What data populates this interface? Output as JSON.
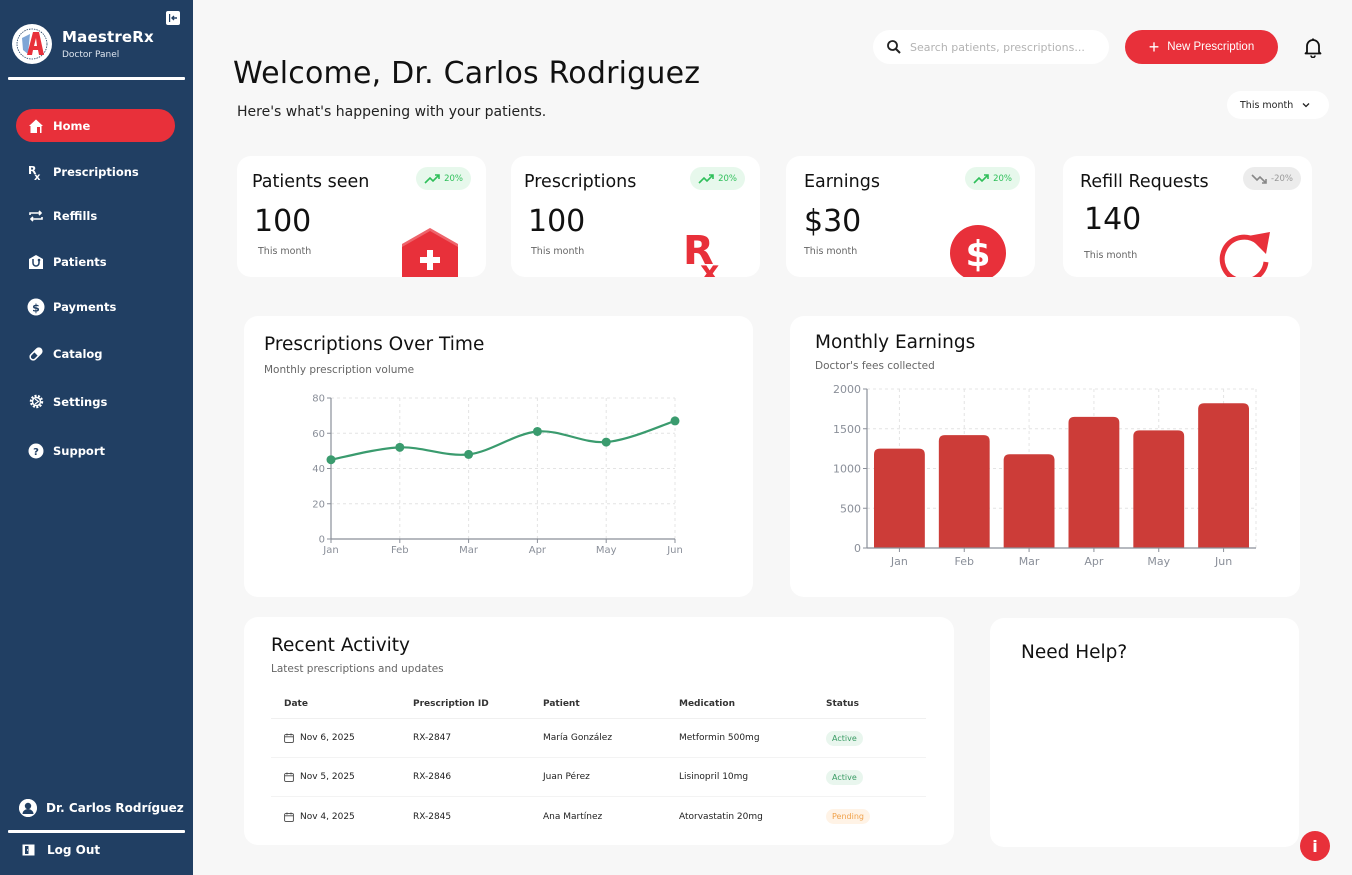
{
  "sidebar": {
    "brand_name": "MaestreRx",
    "brand_sub": "Doctor Panel",
    "items": [
      {
        "label": "Home",
        "icon": "home-icon",
        "active": true
      },
      {
        "label": "Prescriptions",
        "icon": "rx-icon"
      },
      {
        "label": "Reffills",
        "icon": "refill-icon"
      },
      {
        "label": "Patients",
        "icon": "patient-icon"
      },
      {
        "label": "Payments",
        "icon": "dollar-icon"
      },
      {
        "label": "Catalog",
        "icon": "pill-icon"
      },
      {
        "label": "Settings",
        "icon": "gear-icon"
      },
      {
        "label": "Support",
        "icon": "help-icon"
      }
    ],
    "user_name": "Dr. Carlos Rodríguez",
    "logout_label": "Log Out"
  },
  "header": {
    "search_placeholder": "Search patients, prescriptions...",
    "new_button": "New Prescription",
    "welcome": "Welcome, Dr. Carlos Rodriguez",
    "subtitle": "Here's what's happening with your patients.",
    "period": "This month"
  },
  "stats": [
    {
      "title": "Patients seen",
      "value": "100",
      "sub": "This month",
      "trend": "20%",
      "direction": "up",
      "icon": "clinic-icon"
    },
    {
      "title": "Prescriptions",
      "value": "100",
      "sub": "This month",
      "trend": "20%",
      "direction": "up",
      "icon": "rx-icon"
    },
    {
      "title": "Earnings",
      "value": "$30",
      "sub": "This month",
      "trend": "20%",
      "direction": "up",
      "icon": "dollar-icon"
    },
    {
      "title": "Refill Requests",
      "value": "140",
      "sub": "This month",
      "trend": "-20%",
      "direction": "down",
      "icon": "refresh-icon"
    }
  ],
  "colors": {
    "sidebar": "#213f63",
    "accent": "#e8303a",
    "line": "#3a9b6e",
    "bar": "#cc3c38",
    "trend_up": "#2fbf5a"
  },
  "chart_data": [
    {
      "type": "line",
      "title": "Prescriptions Over Time",
      "subtitle": "Monthly prescription volume",
      "categories": [
        "Jan",
        "Feb",
        "Mar",
        "Apr",
        "May",
        "Jun"
      ],
      "values": [
        45,
        52,
        48,
        61,
        55,
        67
      ],
      "xlabel": "",
      "ylabel": "",
      "ylim": [
        0,
        80
      ],
      "yticks": [
        0,
        20,
        40,
        60,
        80
      ],
      "grid": true,
      "legend": "none"
    },
    {
      "type": "bar",
      "title": "Monthly Earnings",
      "subtitle": "Doctor's fees collected",
      "categories": [
        "Jan",
        "Feb",
        "Mar",
        "Apr",
        "May",
        "Jun"
      ],
      "values": [
        1250,
        1420,
        1180,
        1650,
        1480,
        1820
      ],
      "xlabel": "",
      "ylabel": "",
      "ylim": [
        0,
        2000
      ],
      "yticks": [
        0,
        500,
        1000,
        1500,
        2000
      ],
      "grid": true,
      "legend": "none"
    }
  ],
  "activity": {
    "title": "Recent Activity",
    "subtitle": "Latest prescriptions and updates",
    "columns": [
      "Date",
      "Prescription ID",
      "Patient",
      "Medication",
      "Status"
    ],
    "rows": [
      {
        "date": "Nov 6, 2025",
        "id": "RX-2847",
        "patient": "María González",
        "medication": "Metformin 500mg",
        "status": "Active"
      },
      {
        "date": "Nov 5, 2025",
        "id": "RX-2846",
        "patient": "Juan Pérez",
        "medication": "Lisinopril 10mg",
        "status": "Active"
      },
      {
        "date": "Nov 4, 2025",
        "id": "RX-2845",
        "patient": "Ana Martínez",
        "medication": "Atorvastatin 20mg",
        "status": "Pending"
      }
    ]
  },
  "help": {
    "title": "Need Help?"
  },
  "fab": {
    "label": "i"
  }
}
